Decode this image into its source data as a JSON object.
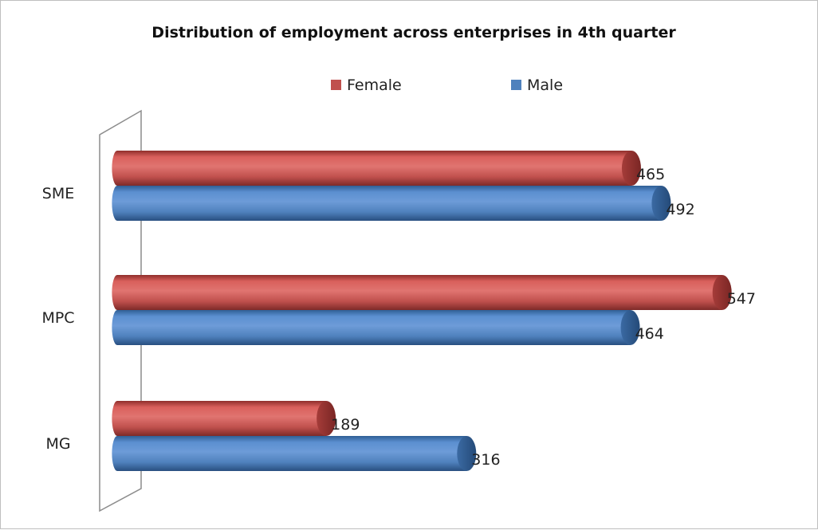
{
  "chart_data": {
    "type": "bar",
    "orientation": "horizontal",
    "title": "Distribution of employment across enterprises in 4th quarter",
    "categories": [
      "SME",
      "MPC",
      "MG"
    ],
    "series": [
      {
        "name": "Female",
        "color": "#c0504d",
        "values": [
          465,
          547,
          189
        ]
      },
      {
        "name": "Male",
        "color": "#4f81bd",
        "values": [
          492,
          464,
          316
        ]
      }
    ],
    "xlim": [
      0,
      600
    ],
    "legend_position": "top",
    "grid": false,
    "style": "3d-cylinder"
  }
}
